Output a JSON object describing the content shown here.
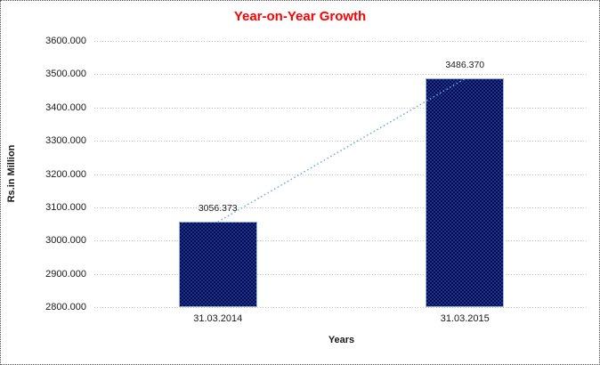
{
  "chart_data": {
    "type": "bar",
    "title": "Year-on-Year Growth",
    "xlabel": "Years",
    "ylabel": "Rs.in Million",
    "categories": [
      "31.03.2014",
      "31.03.2015"
    ],
    "values": [
      3056.373,
      3486.37
    ],
    "data_labels": [
      "3056.373",
      "3486.370"
    ],
    "ylim": [
      2800,
      3600
    ],
    "ytick_step": 100,
    "ytick_labels": [
      "3600.000",
      "3500.000",
      "3400.000",
      "3300.000",
      "3200.000",
      "3100.000",
      "3000.000",
      "2900.000",
      "2800.000"
    ],
    "grid": "horizontal-dotted",
    "legend": "none",
    "trendline": {
      "style": "dotted",
      "from_category": "31.03.2014",
      "to_category": "31.03.2015"
    },
    "colors": {
      "title": "#ff0000",
      "bar_pattern_blue": "#1d2f9c",
      "bar_pattern_dark": "#03103d",
      "bar_border": "#9db4d9",
      "trendline": "#6fa8dc",
      "gridline": "#c7c7c7",
      "text": "#1a1a1a"
    }
  }
}
